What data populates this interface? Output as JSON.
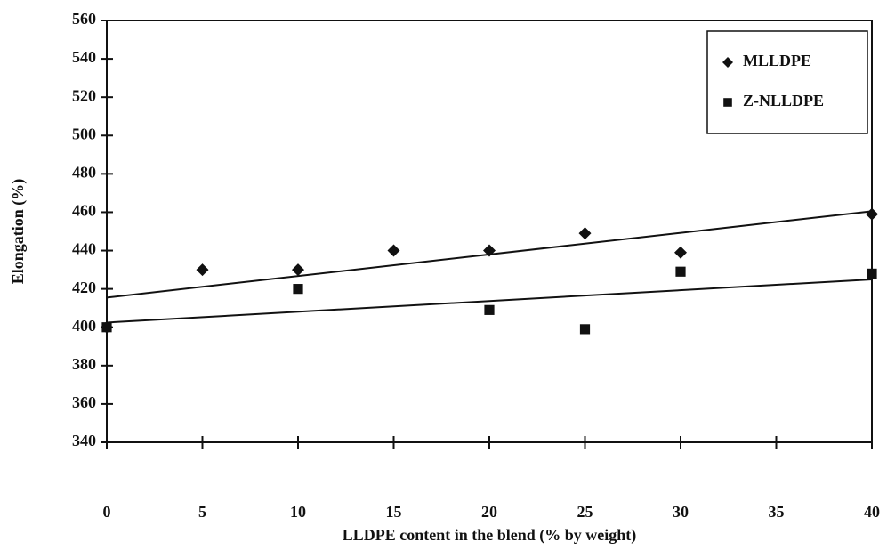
{
  "chart_data": {
    "type": "scatter",
    "x_label": "LLDPE content in the blend (% by weight)",
    "y_label": "Elongation (%)",
    "xlim": [
      0,
      40
    ],
    "xticks": [
      0,
      5,
      10,
      15,
      20,
      25,
      30,
      35,
      40
    ],
    "ylim": [
      340,
      560
    ],
    "yticks": [
      340,
      360,
      380,
      400,
      420,
      440,
      460,
      480,
      500,
      520,
      540,
      560
    ],
    "trendline": true,
    "series": [
      {
        "name": "MLLDPE",
        "color": "#111111",
        "marker": "diamond",
        "x": [
          0,
          5,
          10,
          15,
          20,
          25,
          30,
          40
        ],
        "values": [
          400,
          430,
          430,
          440,
          440,
          449,
          439,
          459
        ]
      },
      {
        "name": "Z-NLLDPE",
        "color": "#111111",
        "marker": "square",
        "x": [
          0,
          10,
          20,
          25,
          30,
          40
        ],
        "values": [
          400,
          420,
          409,
          399,
          429,
          428
        ]
      }
    ]
  }
}
